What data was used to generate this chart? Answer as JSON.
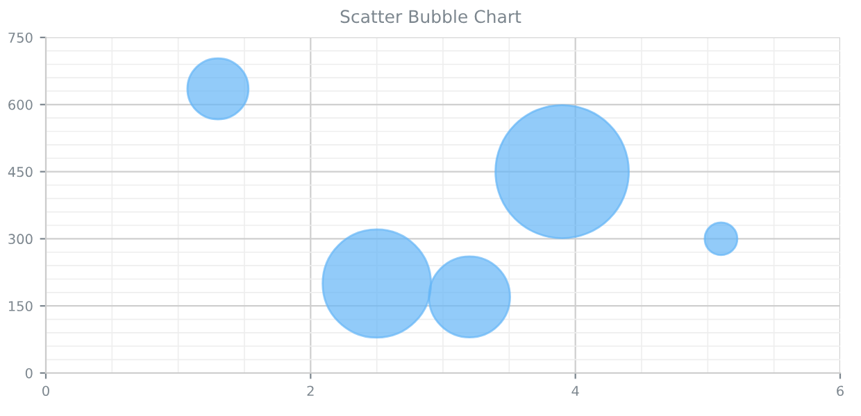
{
  "chart_data": {
    "type": "bubble",
    "title": "Scatter Bubble Chart",
    "x": [
      1.3,
      2.5,
      3.2,
      3.9,
      5.1
    ],
    "values": [
      635,
      200,
      170,
      450,
      300
    ],
    "sizes": [
      0.21,
      0.66,
      0.37,
      1,
      0.06
    ],
    "color": "#64b5f6",
    "xlim": [
      0,
      6
    ],
    "xticks": [
      0,
      2,
      4,
      6
    ],
    "ylim": [
      0,
      750
    ],
    "yticks": [
      0,
      150,
      300,
      450,
      600,
      750
    ],
    "grid": true,
    "legend": false
  }
}
